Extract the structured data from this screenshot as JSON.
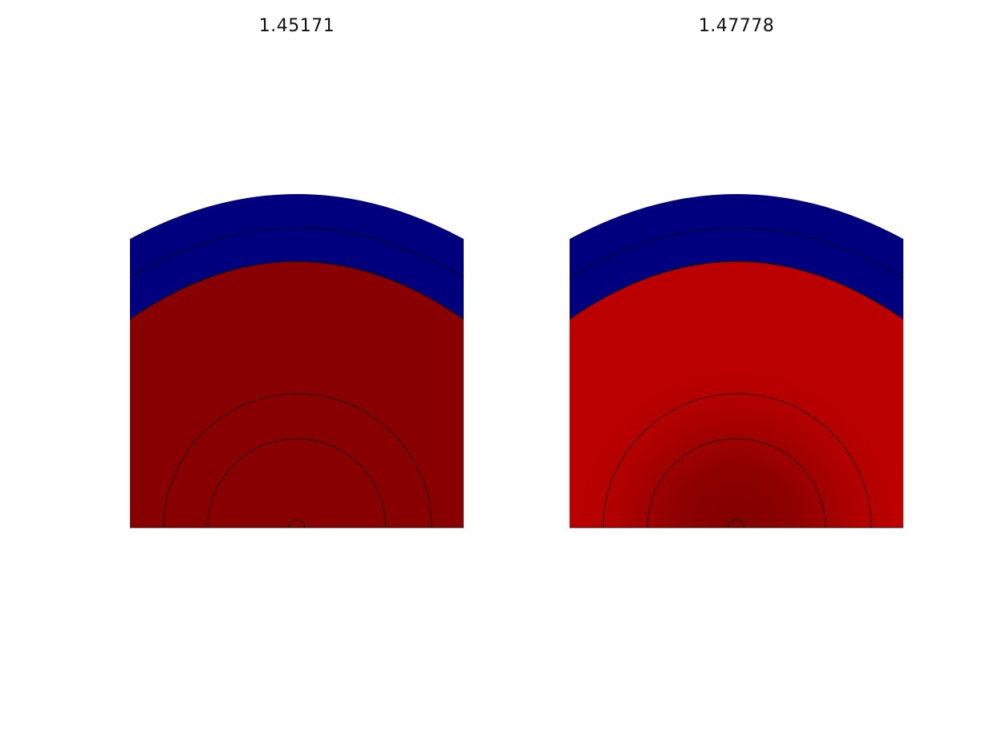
{
  "panels": [
    {
      "title": "1.45171",
      "shading": "uniform",
      "colors": {
        "outer_layers": "#00007f",
        "core": "#880000"
      }
    },
    {
      "title": "1.47778",
      "shading": "radial-gradient",
      "colors": {
        "outer_layers": "#00007f",
        "core_outer": "#bb0000",
        "core_center": "#820000"
      }
    }
  ]
}
